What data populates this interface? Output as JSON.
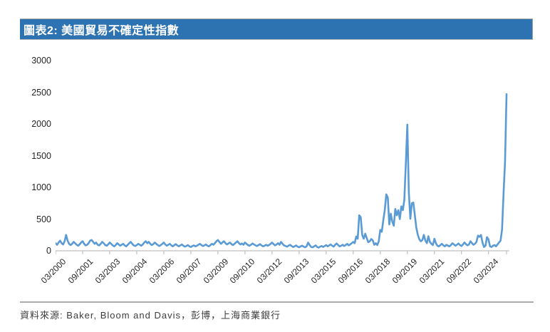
{
  "title_bar": {
    "label": "圖表2: 美國貿易不確定性指數",
    "bg_color": "#2E73B1",
    "text_color": "#FFFFFF"
  },
  "source": {
    "label": "資料來源: Baker, Bloom and Davis，彭博，上海商業銀行"
  },
  "chart_data": {
    "type": "line",
    "title": "美國貿易不確定性指數",
    "series": [
      {
        "name": "美國貿易不確定性指數",
        "color": "#5B9BD5",
        "x_start": "2000-03",
        "x_end": "2025-03",
        "x_frequency": "monthly",
        "values": [
          120,
          95,
          130,
          160,
          120,
          100,
          150,
          250,
          160,
          110,
          90,
          110,
          140,
          120,
          95,
          80,
          100,
          130,
          150,
          110,
          85,
          95,
          120,
          160,
          170,
          140,
          110,
          130,
          95,
          85,
          110,
          140,
          120,
          90,
          80,
          100,
          130,
          110,
          85,
          70,
          90,
          120,
          100,
          80,
          95,
          110,
          85,
          70,
          95,
          120,
          140,
          110,
          85,
          75,
          90,
          110,
          95,
          80,
          100,
          130,
          150,
          120,
          140,
          110,
          90,
          105,
          130,
          110,
          90,
          75,
          90,
          110,
          130,
          100,
          80,
          95,
          110,
          85,
          70,
          90,
          105,
          85,
          70,
          85,
          100,
          80,
          65,
          75,
          90,
          70,
          60,
          75,
          85,
          70,
          80,
          95,
          110,
          90,
          75,
          85,
          100,
          80,
          70,
          90,
          110,
          95,
          120,
          150,
          170,
          140,
          110,
          130,
          150,
          120,
          100,
          115,
          130,
          105,
          90,
          110,
          130,
          150,
          120,
          100,
          115,
          95,
          130,
          110,
          90,
          80,
          95,
          115,
          100,
          85,
          75,
          90,
          105,
          85,
          70,
          80,
          95,
          80,
          90,
          110,
          130,
          105,
          85,
          100,
          120,
          95,
          140,
          110,
          85,
          75,
          65,
          80,
          95,
          75,
          60,
          70,
          85,
          65,
          55,
          70,
          80,
          65,
          55,
          70,
          130,
          90,
          60,
          55,
          70,
          85,
          60,
          50,
          65,
          75,
          60,
          75,
          90,
          70,
          85,
          100,
          80,
          65,
          95,
          115,
          90,
          70,
          80,
          95,
          75,
          90,
          110,
          85,
          100,
          120,
          140,
          120,
          225,
          190,
          560,
          530,
          250,
          190,
          270,
          200,
          135,
          150,
          185,
          165,
          95,
          120,
          90,
          150,
          330,
          300,
          480,
          640,
          890,
          840,
          415,
          585,
          460,
          395,
          660,
          560,
          640,
          500,
          700,
          640,
          800,
          1370,
          1990,
          920,
          505,
          750,
          760,
          560,
          360,
          250,
          180,
          150,
          170,
          250,
          160,
          120,
          230,
          140,
          110,
          90,
          190,
          120,
          80,
          70,
          90,
          110,
          85,
          70,
          95,
          80,
          70,
          90,
          120,
          100,
          80,
          95,
          115,
          90,
          75,
          100,
          130,
          105,
          85,
          100,
          150,
          120,
          95,
          110,
          140,
          240,
          220,
          250,
          130,
          60,
          80,
          215,
          180,
          70,
          60,
          80,
          90,
          70,
          100,
          130,
          160,
          330,
          900,
          1400,
          2470
        ]
      }
    ],
    "x_tick_labels": [
      "03/2000",
      "09/2001",
      "03/2003",
      "09/2004",
      "03/2006",
      "09/2007",
      "03/2009",
      "09/2010",
      "03/2012",
      "09/2013",
      "03/2015",
      "09/2016",
      "03/2018",
      "09/2019",
      "03/2021",
      "09/2022",
      "03/2024"
    ],
    "x_tick_interval_months": 18,
    "y_ticks": [
      0,
      500,
      1000,
      1500,
      2000,
      2500,
      3000
    ],
    "ylim": [
      0,
      3000
    ],
    "grid": false,
    "legend": "none",
    "axis_color": "#BFBFBF",
    "label_color": "#262626"
  }
}
